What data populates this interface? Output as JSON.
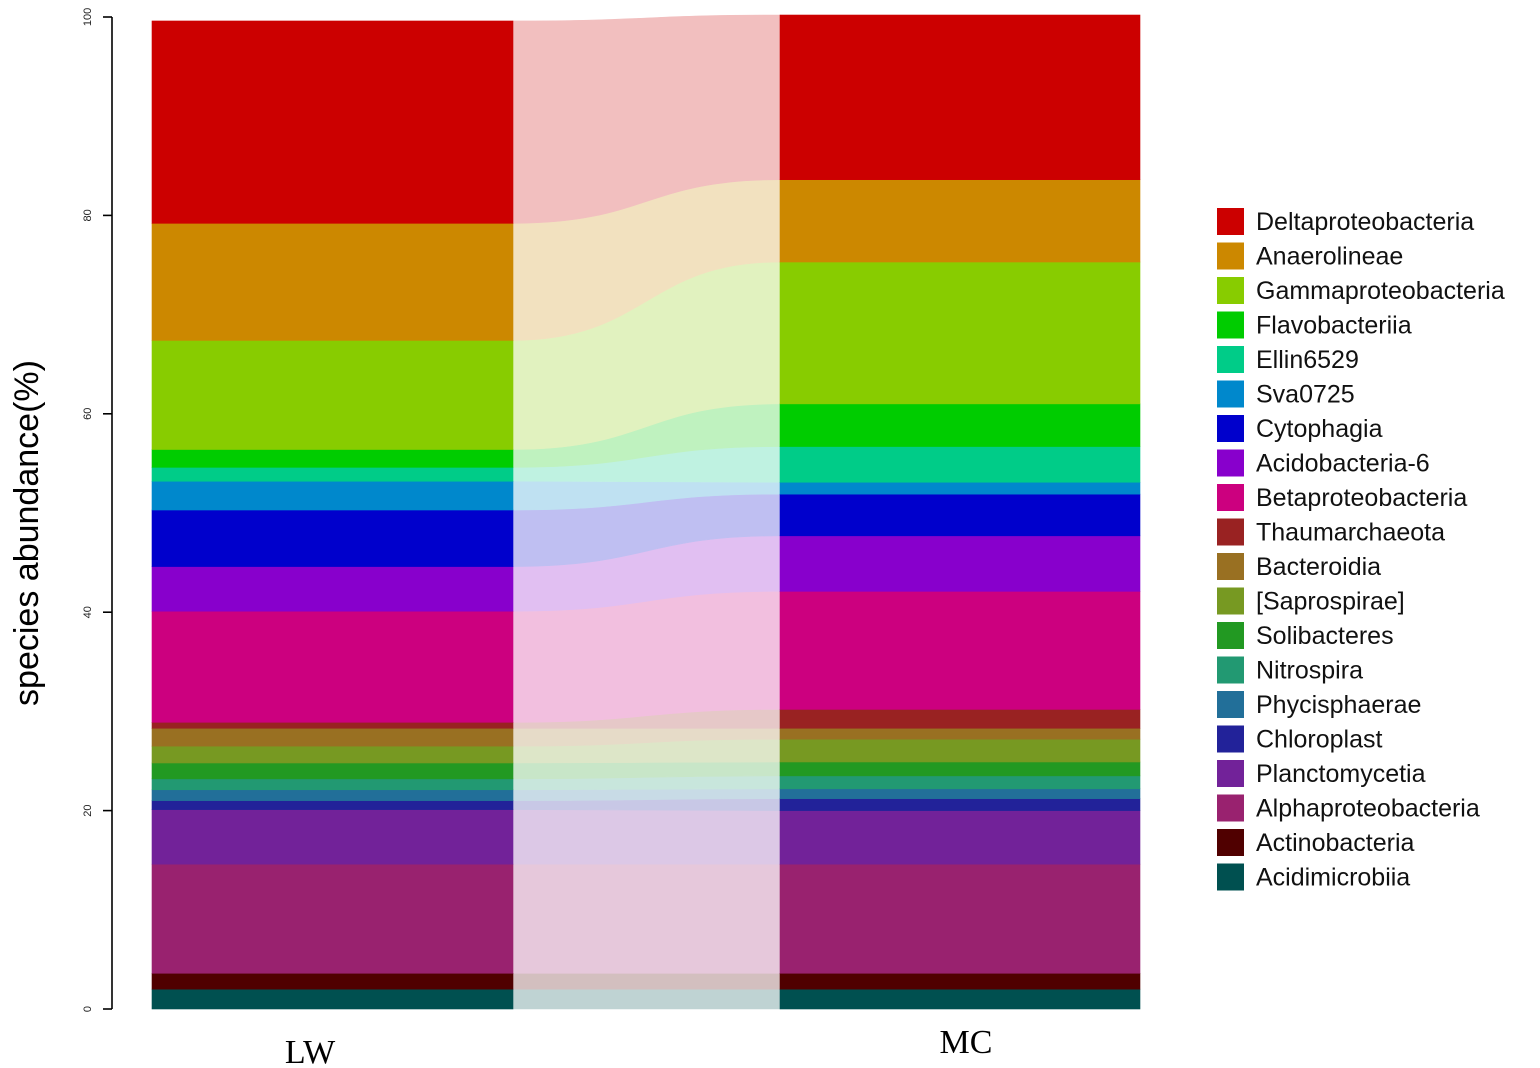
{
  "chart_data": {
    "type": "stacked-bar-alluvial",
    "title": "",
    "xlabel": "",
    "ylabel": "species abundance(%)",
    "ylim": [
      0,
      100
    ],
    "yticks": [
      0,
      20,
      40,
      60,
      80,
      100
    ],
    "categories": [
      "LW",
      "MC"
    ],
    "series": [
      {
        "name": "Acidimicrobiia",
        "color": "#005050",
        "values": [
          2.0,
          2.0
        ]
      },
      {
        "name": "Actinobacteria",
        "color": "#500000",
        "values": [
          1.6,
          1.6
        ]
      },
      {
        "name": "Alphaproteobacteria",
        "color": "#99226F",
        "values": [
          11.0,
          11.0
        ]
      },
      {
        "name": "Planctomycetia",
        "color": "#722299",
        "values": [
          5.5,
          5.4
        ]
      },
      {
        "name": "Chloroplast",
        "color": "#222299",
        "values": [
          0.9,
          1.2
        ]
      },
      {
        "name": "Phycisphaerae",
        "color": "#226F99",
        "values": [
          1.1,
          1.0
        ]
      },
      {
        "name": "Nitrospira",
        "color": "#229972",
        "values": [
          1.1,
          1.3
        ]
      },
      {
        "name": "Solibacteres",
        "color": "#229922",
        "values": [
          1.6,
          1.4
        ]
      },
      {
        "name": "[Saprospirae]",
        "color": "#779922",
        "values": [
          1.7,
          2.3
        ]
      },
      {
        "name": "Bacteroidia",
        "color": "#997022",
        "values": [
          1.8,
          1.1
        ]
      },
      {
        "name": "Thaumarchaeota",
        "color": "#992222",
        "values": [
          0.6,
          1.9
        ]
      },
      {
        "name": "Betaproteobacteria",
        "color": "#CC007F",
        "values": [
          11.2,
          11.9
        ]
      },
      {
        "name": "Acidobacteria-6",
        "color": "#8800CC",
        "values": [
          4.5,
          5.6
        ]
      },
      {
        "name": "Cytophagia",
        "color": "#0000CC",
        "values": [
          5.7,
          4.2
        ]
      },
      {
        "name": "Sva0725",
        "color": "#0088CC",
        "values": [
          2.9,
          1.2
        ]
      },
      {
        "name": "Ellin6529",
        "color": "#00CC88",
        "values": [
          1.4,
          3.6
        ]
      },
      {
        "name": "Flavobacteriia",
        "color": "#00CC00",
        "values": [
          1.8,
          4.3
        ]
      },
      {
        "name": "Gammaproteobacteria",
        "color": "#88CC00",
        "values": [
          11.0,
          14.3
        ]
      },
      {
        "name": "Anaerolineae",
        "color": "#CC8800",
        "values": [
          11.8,
          8.3
        ]
      },
      {
        "name": "Deltaproteobacteria",
        "color": "#CC0000",
        "values": [
          20.4,
          16.6
        ]
      }
    ],
    "legend": [
      "Deltaproteobacteria",
      "Anaerolineae",
      "Gammaproteobacteria",
      "Flavobacteriia",
      "Ellin6529",
      "Sva0725",
      "Cytophagia",
      "Acidobacteria-6",
      "Betaproteobacteria",
      "Thaumarchaeota",
      "Bacteroidia",
      "[Saprospirae]",
      "Solibacteres",
      "Nitrospira",
      "Phycisphaerae",
      "Chloroplast",
      "Planctomycetia",
      "Alphaproteobacteria",
      "Actinobacteria",
      "Acidimicrobiia"
    ],
    "legend_position": "right"
  }
}
